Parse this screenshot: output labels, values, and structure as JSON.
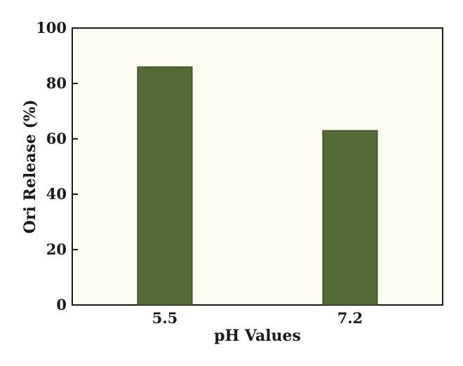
{
  "chart_data": {
    "type": "bar",
    "categories": [
      "5.5",
      "7.2"
    ],
    "values": [
      86,
      63
    ],
    "xlabel": "pH Values",
    "ylabel": "Ori Release (%)",
    "ylim": [
      0,
      100
    ],
    "yticks": [
      0,
      20,
      40,
      60,
      80,
      100
    ],
    "grid": false,
    "legend": "none",
    "colors": {
      "plot_background": "#fdfcf0",
      "bar_fill": "#556b35",
      "bar_stroke": "#2a3a1a",
      "axis": "#1a1a1a"
    }
  }
}
